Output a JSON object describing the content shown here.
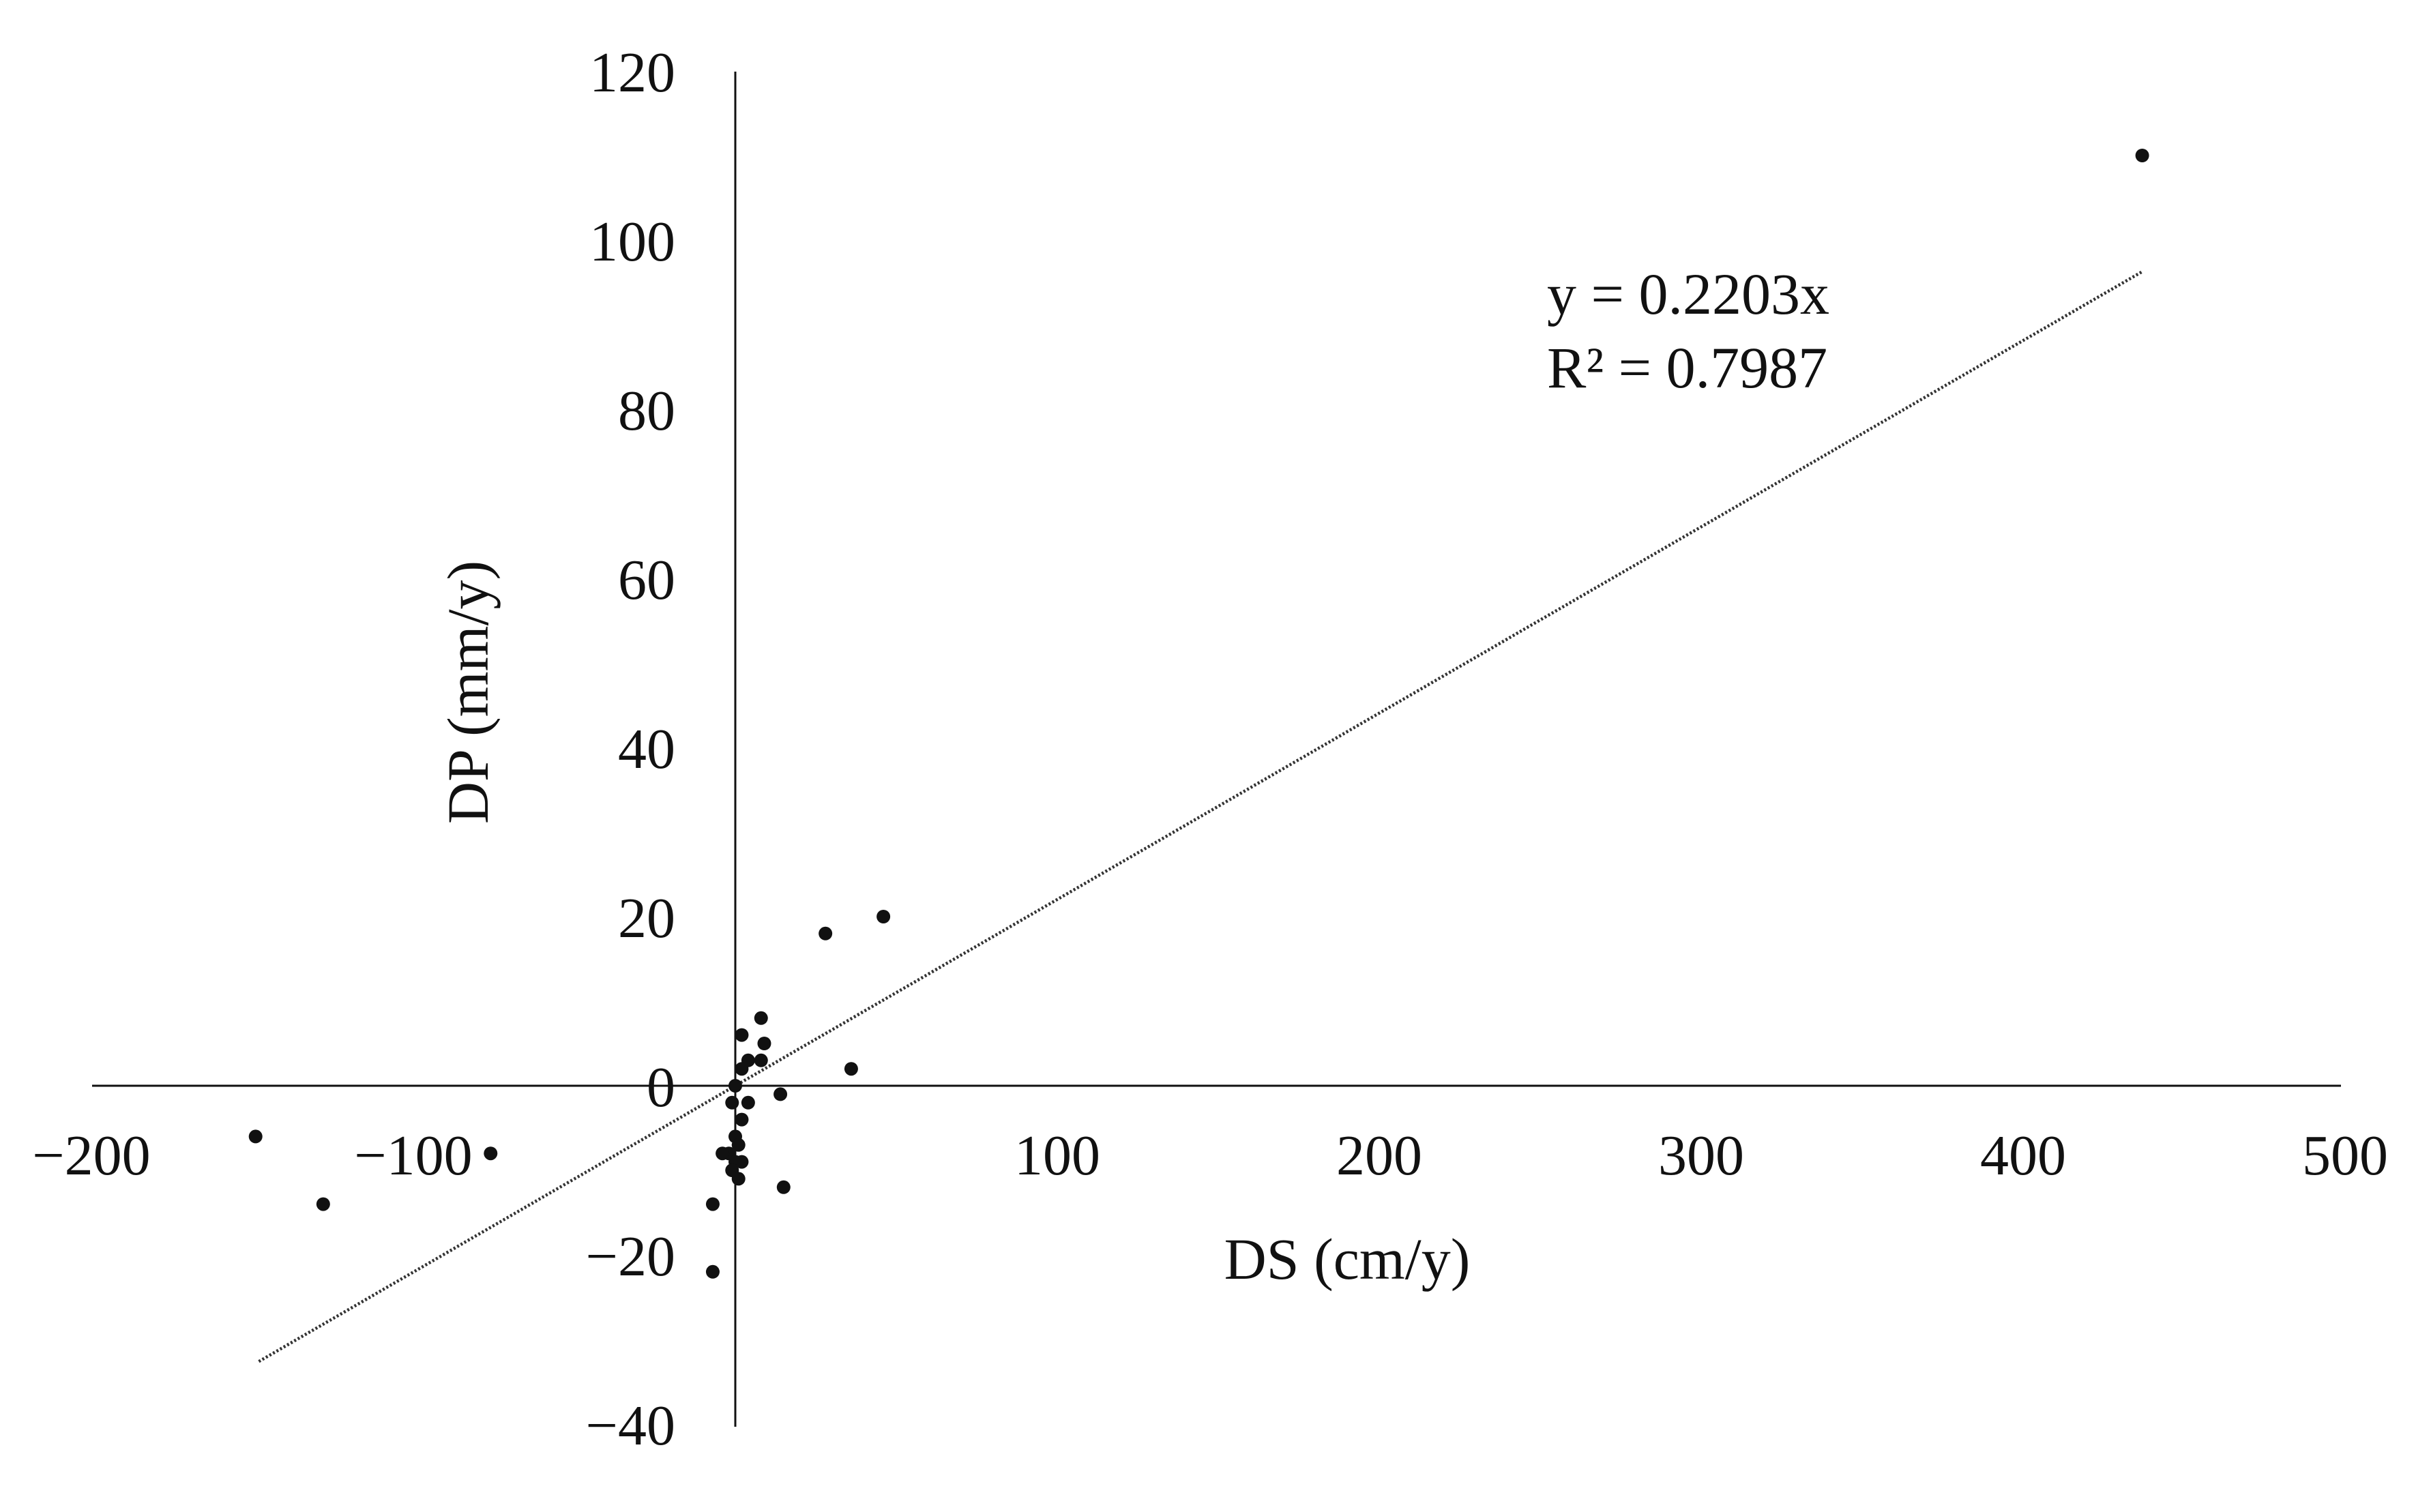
{
  "chart_data": {
    "type": "scatter",
    "title": "",
    "xlabel": "DS (cm/y)",
    "ylabel": "DP (mm/y)",
    "xlim": [
      -200,
      500
    ],
    "ylim": [
      -40,
      120
    ],
    "x_ticks": [
      -200,
      -100,
      100,
      200,
      300,
      400,
      500
    ],
    "x_tick_labels": [
      "−200",
      "−100",
      "100",
      "200",
      "300",
      "400",
      "500"
    ],
    "y_ticks": [
      -40,
      -20,
      0,
      20,
      40,
      60,
      80,
      100,
      120
    ],
    "y_tick_labels": [
      "−40",
      "−20",
      "0",
      "20",
      "40",
      "60",
      "80",
      "100",
      "120"
    ],
    "grid": false,
    "point_color": "#111111",
    "trendline": {
      "slope": 0.2203,
      "intercept": 0,
      "x_range": [
        -148,
        437
      ],
      "style": "dotted",
      "color": "#333333"
    },
    "annotations": [
      "y = 0.2203x",
      "R² = 0.7987"
    ],
    "series": [
      {
        "points": [
          {
            "x": 437,
            "y": 110
          },
          {
            "x": 46,
            "y": 20
          },
          {
            "x": 28,
            "y": 18
          },
          {
            "x": 36,
            "y": 2
          },
          {
            "x": 14,
            "y": -1
          },
          {
            "x": 15,
            "y": -12
          },
          {
            "x": 8,
            "y": 8
          },
          {
            "x": 2,
            "y": 6
          },
          {
            "x": 9,
            "y": 5
          },
          {
            "x": 4,
            "y": 3
          },
          {
            "x": 8,
            "y": 3
          },
          {
            "x": 2,
            "y": 2
          },
          {
            "x": 0,
            "y": 0
          },
          {
            "x": -1,
            "y": -2
          },
          {
            "x": 4,
            "y": -2
          },
          {
            "x": 2,
            "y": -4
          },
          {
            "x": 0,
            "y": -6
          },
          {
            "x": 1,
            "y": -7
          },
          {
            "x": -2,
            "y": -8
          },
          {
            "x": -4,
            "y": -8
          },
          {
            "x": 0,
            "y": -9
          },
          {
            "x": 2,
            "y": -9
          },
          {
            "x": -1,
            "y": -10
          },
          {
            "x": 1,
            "y": -11
          },
          {
            "x": -7,
            "y": -14
          },
          {
            "x": -7,
            "y": -22
          },
          {
            "x": -149,
            "y": -6
          },
          {
            "x": -128,
            "y": -14
          },
          {
            "x": -76,
            "y": -8
          }
        ]
      }
    ]
  }
}
